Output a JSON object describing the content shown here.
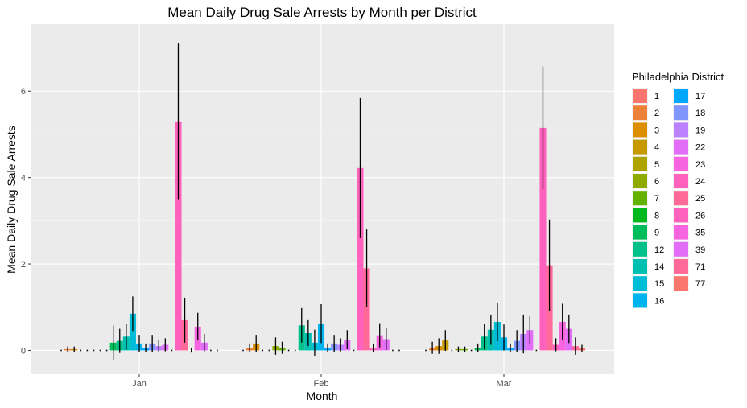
{
  "chart_data": {
    "type": "bar",
    "title": "Mean Daily Drug Sale Arrests by Month per District",
    "xlabel": "Month",
    "ylabel": "Mean Daily Drug Sale Arrests",
    "categories": [
      "Jan",
      "Feb",
      "Mar"
    ],
    "yticks": [
      "0",
      "2",
      "4",
      "6"
    ],
    "ylim": [
      -0.55,
      7.55
    ],
    "grid": true,
    "error_bars": true,
    "legend": {
      "title": "Philadelphia District",
      "placement": "right",
      "columns": [
        [
          "1",
          "2",
          "3",
          "4",
          "5",
          "6",
          "7",
          "8",
          "9",
          "12",
          "14",
          "15",
          "16"
        ],
        [
          "17",
          "18",
          "19",
          "22",
          "23",
          "24",
          "25",
          "26",
          "35",
          "39",
          "71",
          "77"
        ]
      ]
    },
    "series": [
      {
        "name": "1",
        "color": "#F8766D",
        "values": [
          0.0,
          0.0,
          0.0
        ],
        "errors": [
          0.0,
          0.0,
          0.0
        ]
      },
      {
        "name": "2",
        "color": "#EC8239",
        "values": [
          0.03,
          0.06,
          0.06
        ],
        "errors": [
          0.06,
          0.1,
          0.14
        ]
      },
      {
        "name": "3",
        "color": "#DB8E00",
        "values": [
          0.03,
          0.16,
          0.1
        ],
        "errors": [
          0.06,
          0.2,
          0.18
        ]
      },
      {
        "name": "4",
        "color": "#C79800",
        "values": [
          0.0,
          0.0,
          0.23
        ],
        "errors": [
          0.0,
          0.0,
          0.24
        ]
      },
      {
        "name": "5",
        "color": "#AEA200",
        "values": [
          0.0,
          0.0,
          0.0
        ],
        "errors": [
          0.0,
          0.0,
          0.0
        ]
      },
      {
        "name": "6",
        "color": "#8FAA00",
        "values": [
          0.0,
          0.1,
          0.03
        ],
        "errors": [
          0.0,
          0.2,
          0.06
        ]
      },
      {
        "name": "7",
        "color": "#64B200",
        "values": [
          0.0,
          0.06,
          0.03
        ],
        "errors": [
          0.0,
          0.14,
          0.06
        ]
      },
      {
        "name": "8",
        "color": "#00B81B",
        "values": [
          0.0,
          0.0,
          0.0
        ],
        "errors": [
          0.0,
          0.0,
          0.0
        ]
      },
      {
        "name": "9",
        "color": "#00BD5C",
        "values": [
          0.18,
          0.0,
          0.06
        ],
        "errors": [
          0.4,
          0.0,
          0.1
        ]
      },
      {
        "name": "12",
        "color": "#00C08B",
        "values": [
          0.22,
          0.58,
          0.32
        ],
        "errors": [
          0.28,
          0.4,
          0.3
        ]
      },
      {
        "name": "14",
        "color": "#00C0B2",
        "values": [
          0.32,
          0.4,
          0.48
        ],
        "errors": [
          0.3,
          0.3,
          0.35
        ]
      },
      {
        "name": "15",
        "color": "#00BCD6",
        "values": [
          0.85,
          0.18,
          0.66
        ],
        "errors": [
          0.4,
          0.3,
          0.45
        ]
      },
      {
        "name": "16",
        "color": "#00B5EE",
        "values": [
          0.16,
          0.62,
          0.3
        ],
        "errors": [
          0.2,
          0.45,
          0.3
        ]
      },
      {
        "name": "17",
        "color": "#00A7FF",
        "values": [
          0.06,
          0.06,
          0.06
        ],
        "errors": [
          0.1,
          0.1,
          0.1
        ]
      },
      {
        "name": "18",
        "color": "#7F96FF",
        "values": [
          0.16,
          0.16,
          0.22
        ],
        "errors": [
          0.2,
          0.2,
          0.25
        ]
      },
      {
        "name": "19",
        "color": "#BC81FF",
        "values": [
          0.1,
          0.13,
          0.38
        ],
        "errors": [
          0.15,
          0.15,
          0.45
        ]
      },
      {
        "name": "22",
        "color": "#E26EF7",
        "values": [
          0.13,
          0.25,
          0.47
        ],
        "errors": [
          0.15,
          0.22,
          0.32
        ]
      },
      {
        "name": "23",
        "color": "#F863DF",
        "values": [
          0.0,
          0.0,
          0.0
        ],
        "errors": [
          0.0,
          0.0,
          0.0
        ]
      },
      {
        "name": "24",
        "color": "#FF62BC",
        "values": [
          5.3,
          4.22,
          5.15
        ],
        "errors": [
          1.8,
          1.62,
          1.42
        ]
      },
      {
        "name": "25",
        "color": "#FF6A98",
        "values": [
          0.7,
          1.9,
          1.97
        ],
        "errors": [
          0.52,
          0.9,
          1.06
        ]
      },
      {
        "name": "26",
        "color": "#FF62BC",
        "values": [
          0.0,
          0.06,
          0.13
        ],
        "errors": [
          0.05,
          0.1,
          0.15
        ]
      },
      {
        "name": "35",
        "color": "#F863DF",
        "values": [
          0.55,
          0.35,
          0.66
        ],
        "errors": [
          0.32,
          0.28,
          0.42
        ]
      },
      {
        "name": "39",
        "color": "#E26EF7",
        "values": [
          0.18,
          0.26,
          0.5
        ],
        "errors": [
          0.2,
          0.25,
          0.33
        ]
      },
      {
        "name": "71",
        "color": "#FF6A98",
        "values": [
          0.0,
          0.0,
          0.1
        ],
        "errors": [
          0.0,
          0.0,
          0.2
        ]
      },
      {
        "name": "77",
        "color": "#F8766D",
        "values": [
          0.0,
          0.0,
          0.05
        ],
        "errors": [
          0.0,
          0.0,
          0.08
        ]
      }
    ]
  }
}
